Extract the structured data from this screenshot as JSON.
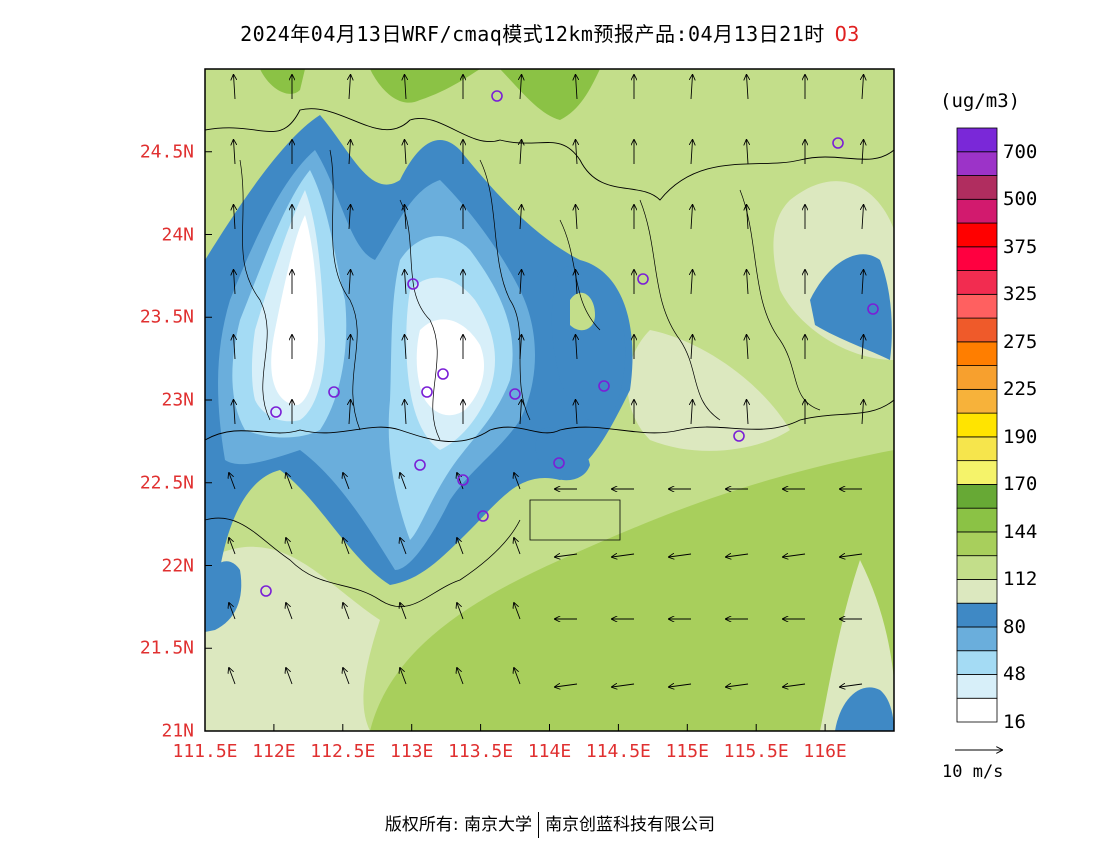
{
  "title": {
    "text": "2024年04月13日WRF/cmaq模式12km预报产品:04月13日21时",
    "species": "O3"
  },
  "map": {
    "variable": "O3",
    "lat_labels": [
      "24.5N",
      "24N",
      "23.5N",
      "23N",
      "22.5N",
      "22N",
      "21.5N",
      "21N"
    ],
    "lat_values": [
      24.5,
      24,
      23.5,
      23,
      22.5,
      22,
      21.5,
      21
    ],
    "lon_labels": [
      "111.5E",
      "112E",
      "112.5E",
      "113E",
      "113.5E",
      "114E",
      "114.5E",
      "115E",
      "115.5E",
      "116E"
    ],
    "lon_values": [
      111.5,
      112,
      112.5,
      113,
      113.5,
      114,
      114.5,
      115,
      115.5,
      116
    ],
    "extent": {
      "lon_min": 111.5,
      "lon_max": 116.5,
      "lat_min": 21.0,
      "lat_max": 25.0
    },
    "station_marker_color": "#7a1fd6"
  },
  "colorbar": {
    "unit": "(ug/m3)",
    "labels": [
      "700",
      "500",
      "375",
      "325",
      "275",
      "225",
      "190",
      "170",
      "144",
      "112",
      "80",
      "48",
      "16"
    ],
    "colors_bottom_to_top": [
      "#ffffff",
      "#d7eff9",
      "#a4dbf4",
      "#6aaedc",
      "#3f89c5",
      "#dce8bf",
      "#c3de8a",
      "#a8cf5c",
      "#8bc245",
      "#67a935",
      "#f5f36a",
      "#f6e54c",
      "#ffe400",
      "#f7b23a",
      "#f7a02e",
      "#ff7e00",
      "#ef5a2a",
      "#ff6060",
      "#f22c50",
      "#ff0040",
      "#ff0000",
      "#d21a6e",
      "#b02d5f",
      "#9c33c8",
      "#7a28d8"
    ]
  },
  "reference_arrow": {
    "label": "10 m/s"
  },
  "footer": {
    "left": "版权所有: 南京大学",
    "right": "南京创蓝科技有限公司"
  }
}
